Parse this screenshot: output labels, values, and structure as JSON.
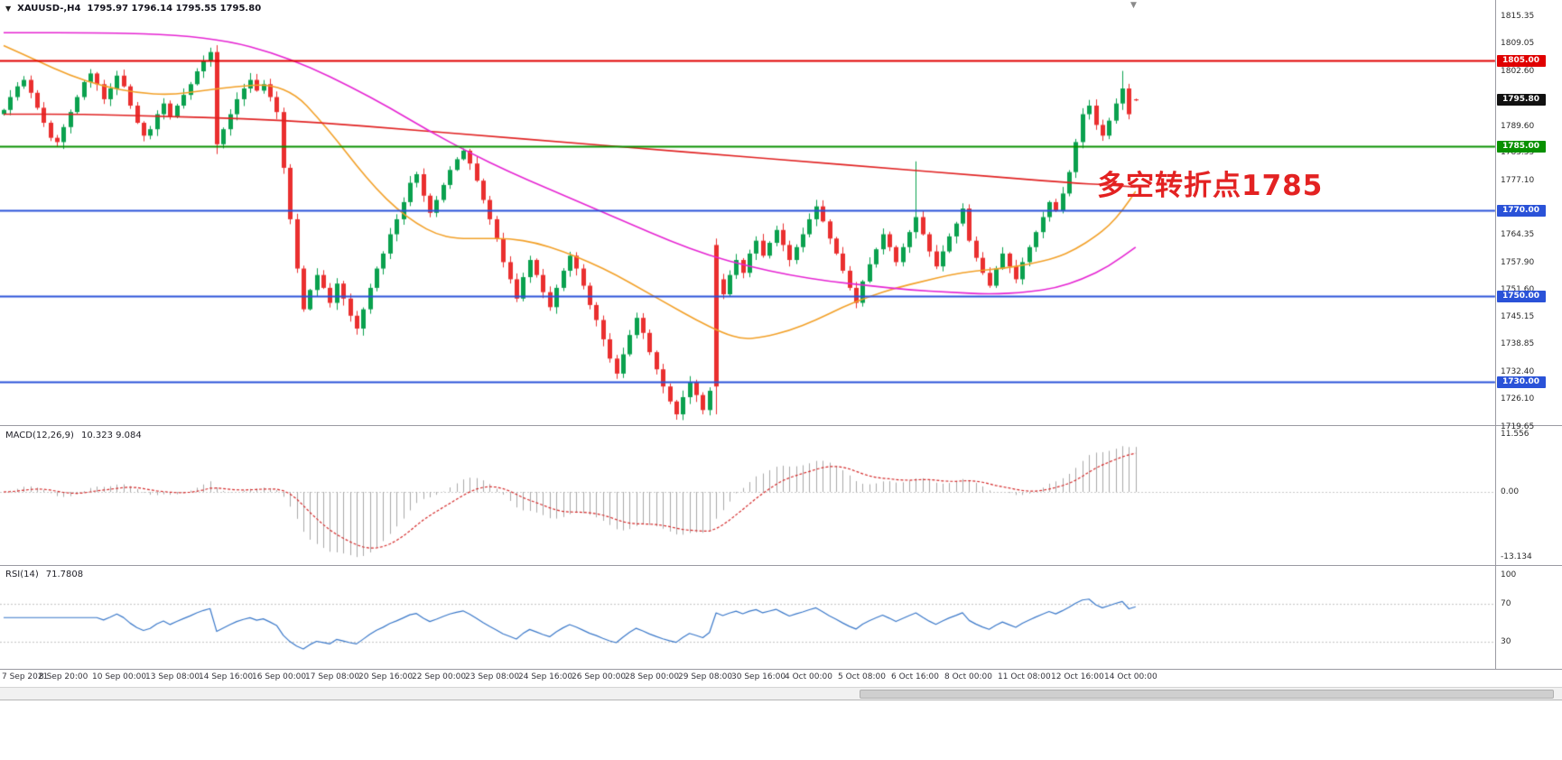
{
  "header": {
    "symbol": "XAUUSD-,H4",
    "ohlc": "1795.97 1796.14 1795.55 1795.80"
  },
  "icons": {
    "symbol_arrow": "▼",
    "shift_marker": "▼"
  },
  "main": {
    "annotation": {
      "text": "多空转折点1785",
      "color": "#e32222"
    },
    "hlines": [
      {
        "price": 1805.0,
        "label": "1805.00",
        "color": "#e00000"
      },
      {
        "price": 1785.0,
        "label": "1785.00",
        "color": "#089000"
      },
      {
        "price": 1770.0,
        "label": "1770.00",
        "color": "#2a52d8"
      },
      {
        "price": 1750.0,
        "label": "1750.00",
        "color": "#2a52d8"
      },
      {
        "price": 1730.0,
        "label": "1730.00",
        "color": "#2a52d8"
      }
    ],
    "price_tag": {
      "label": "1795.80",
      "price": 1795.8,
      "color": "#111111"
    },
    "y_labels": [
      1815.35,
      1809.05,
      1802.6,
      1789.6,
      1783.55,
      1777.1,
      1764.35,
      1757.9,
      1751.6,
      1745.15,
      1738.85,
      1732.4,
      1726.1,
      1719.65
    ]
  },
  "macd": {
    "label": "MACD(12,26,9)",
    "values": "10.323 9.084",
    "y_labels": [
      "11.556",
      "0.00",
      "-13.134"
    ],
    "y_values": [
      11.556,
      0,
      -13.134
    ]
  },
  "rsi": {
    "label": "RSI(14)",
    "value": "71.7808",
    "y_labels": [
      "100",
      "70",
      "30"
    ],
    "y_values": [
      100,
      70,
      30
    ],
    "levels": [
      70,
      30
    ]
  },
  "x_labels": [
    "7 Sep 2021",
    "8 Sep 20:00",
    "10 Sep 00:00",
    "13 Sep 08:00",
    "14 Sep 16:00",
    "16 Sep 00:00",
    "17 Sep 08:00",
    "20 Sep 16:00",
    "22 Sep 00:00",
    "23 Sep 08:00",
    "24 Sep 16:00",
    "26 Sep 00:00",
    "28 Sep 00:00",
    "29 Sep 08:00",
    "30 Sep 16:00",
    "4 Oct 00:00",
    "5 Oct 08:00",
    "6 Oct 16:00",
    "8 Oct 00:00",
    "11 Oct 08:00",
    "12 Oct 16:00",
    "14 Oct 00:00"
  ],
  "chart_data": {
    "type": "candlestick",
    "symbol": "XAUUSD-",
    "timeframe": "H4",
    "current_ohlc": {
      "open": 1795.97,
      "high": 1796.14,
      "low": 1795.55,
      "close": 1795.8
    },
    "price_axis_range": [
      1719.65,
      1815.35
    ],
    "horizontal_levels": [
      1805.0,
      1785.0,
      1770.0,
      1750.0,
      1730.0
    ],
    "closes": [
      1793.5,
      1796.5,
      1799,
      1800.5,
      1797.5,
      1794,
      1790.5,
      1787,
      1786,
      1789.5,
      1793,
      1796.5,
      1800,
      1802,
      1799.5,
      1796,
      1798.5,
      1801.5,
      1799,
      1794.5,
      1790.5,
      1787.5,
      1789,
      1792.5,
      1795,
      1792,
      1794.5,
      1797,
      1799.5,
      1802.5,
      1805,
      1807,
      1785.5,
      1789,
      1792.5,
      1796,
      1798.5,
      1800.5,
      1798,
      1799.5,
      1796.5,
      1793,
      1780,
      1768,
      1756.5,
      1747,
      1751.5,
      1755,
      1752,
      1748.5,
      1753,
      1749.5,
      1745.5,
      1742.5,
      1747,
      1752,
      1756.5,
      1760,
      1764.5,
      1768,
      1772,
      1776.5,
      1778.5,
      1773.5,
      1769.5,
      1772.5,
      1776,
      1779.5,
      1782,
      1784,
      1781,
      1777,
      1772.5,
      1768,
      1763.5,
      1758,
      1754,
      1749.5,
      1754.5,
      1758.5,
      1755,
      1751,
      1747.5,
      1752,
      1756,
      1759.5,
      1756.5,
      1752.5,
      1748,
      1744.5,
      1740,
      1735.5,
      1732,
      1736.5,
      1741,
      1745,
      1741.5,
      1737,
      1733,
      1729,
      1725.5,
      1722.5,
      1726.5,
      1730,
      1727,
      1723.5,
      1728,
      1754,
      1750.5,
      1755,
      1758.5,
      1755.5,
      1760,
      1763,
      1759.5,
      1762.5,
      1765.5,
      1762,
      1758.5,
      1761.5,
      1764.5,
      1768,
      1771,
      1767.5,
      1763.5,
      1760,
      1756,
      1752,
      1748.5,
      1753.5,
      1757.5,
      1761,
      1764.5,
      1761.5,
      1758,
      1761.5,
      1765,
      1768.5,
      1764.5,
      1760.5,
      1757,
      1760.5,
      1764,
      1767,
      1770.5,
      1763,
      1759,
      1755.5,
      1752.5,
      1756.5,
      1760,
      1757,
      1754,
      1758,
      1761.5,
      1765,
      1768.5,
      1772,
      1770,
      1774,
      1779,
      1786,
      1792.5,
      1794.5,
      1790,
      1787.5,
      1791,
      1795,
      1798.5,
      1792.5,
      1795.8
    ],
    "overrides": {
      "32": [
        1807,
        1808.6,
        1783.2,
        1785.5
      ],
      "107": [
        1762,
        1763.5,
        1722.5,
        1729
      ],
      "137": [
        1765,
        1781.5,
        1763.5,
        1768.5
      ],
      "168": [
        1795,
        1802.6,
        1793.5,
        1798.5
      ],
      "170": [
        1795.97,
        1796.14,
        1795.55,
        1795.8
      ]
    },
    "ma_magenta": [
      [
        0,
        1811.5
      ],
      [
        16,
        1811.5
      ],
      [
        26,
        1811
      ],
      [
        34,
        1809.5
      ],
      [
        40,
        1807
      ],
      [
        46,
        1803.5
      ],
      [
        52,
        1799
      ],
      [
        58,
        1794
      ],
      [
        64,
        1788.5
      ],
      [
        70,
        1783.5
      ],
      [
        76,
        1779
      ],
      [
        82,
        1775
      ],
      [
        88,
        1771
      ],
      [
        94,
        1767
      ],
      [
        100,
        1763
      ],
      [
        106,
        1759.5
      ],
      [
        112,
        1757
      ],
      [
        118,
        1755
      ],
      [
        124,
        1753.5
      ],
      [
        130,
        1752.5
      ],
      [
        136,
        1751.5
      ],
      [
        142,
        1751
      ],
      [
        148,
        1750.5
      ],
      [
        154,
        1751
      ],
      [
        158,
        1752
      ],
      [
        162,
        1754
      ],
      [
        166,
        1757
      ],
      [
        170,
        1761.5
      ]
    ],
    "ma_orange": [
      [
        0,
        1808.5
      ],
      [
        5,
        1805
      ],
      [
        10,
        1801.5
      ],
      [
        15,
        1799
      ],
      [
        20,
        1797.5
      ],
      [
        25,
        1797
      ],
      [
        30,
        1798
      ],
      [
        35,
        1799
      ],
      [
        40,
        1799.5
      ],
      [
        44,
        1797
      ],
      [
        47,
        1792
      ],
      [
        50,
        1786.5
      ],
      [
        53,
        1780.5
      ],
      [
        56,
        1775
      ],
      [
        59,
        1770.5
      ],
      [
        62,
        1767
      ],
      [
        65,
        1764.5
      ],
      [
        68,
        1763.5
      ],
      [
        72,
        1763.5
      ],
      [
        76,
        1763.5
      ],
      [
        80,
        1762.5
      ],
      [
        84,
        1760.5
      ],
      [
        88,
        1758
      ],
      [
        92,
        1755
      ],
      [
        96,
        1751.5
      ],
      [
        100,
        1748
      ],
      [
        104,
        1744.5
      ],
      [
        108,
        1741.5
      ],
      [
        111,
        1740
      ],
      [
        114,
        1740.5
      ],
      [
        118,
        1742
      ],
      [
        122,
        1744.5
      ],
      [
        126,
        1747.5
      ],
      [
        130,
        1750
      ],
      [
        134,
        1752
      ],
      [
        138,
        1753.5
      ],
      [
        142,
        1755
      ],
      [
        146,
        1756
      ],
      [
        150,
        1756.5
      ],
      [
        154,
        1757.5
      ],
      [
        158,
        1759
      ],
      [
        161,
        1761
      ],
      [
        164,
        1764
      ],
      [
        166,
        1766.5
      ],
      [
        168,
        1770
      ],
      [
        170,
        1774.5
      ]
    ],
    "ma_red": [
      [
        0,
        1792.5
      ],
      [
        12,
        1792.5
      ],
      [
        24,
        1792
      ],
      [
        36,
        1791.5
      ],
      [
        48,
        1790.5
      ],
      [
        60,
        1789
      ],
      [
        72,
        1787.5
      ],
      [
        84,
        1786
      ],
      [
        96,
        1784.5
      ],
      [
        108,
        1783
      ],
      [
        120,
        1781.5
      ],
      [
        132,
        1780
      ],
      [
        144,
        1778.5
      ],
      [
        152,
        1777.5
      ],
      [
        160,
        1776.5
      ],
      [
        166,
        1776
      ],
      [
        170,
        1775.5
      ]
    ],
    "macd_params": {
      "fast": 12,
      "slow": 26,
      "signal": 9,
      "current": [
        10.323,
        9.084
      ]
    },
    "rsi_period": 14,
    "rsi_current": 71.7808,
    "colors": {
      "bull": "#0aa14e",
      "bear": "#ea2f2f",
      "ma_magenta": "#e524d2",
      "ma_orange": "#f2a028",
      "ma_red": "#e02222",
      "macd_hist": "#a9a9a9",
      "macd_signal": "#d42a2a",
      "rsi_line": "#3a78c9",
      "grid": "#c8c8c8"
    }
  }
}
